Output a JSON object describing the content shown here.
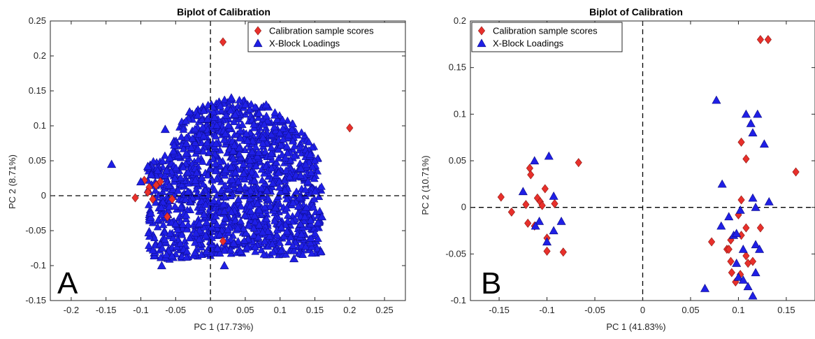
{
  "chart_data": [
    {
      "type": "scatter",
      "panel_label": "A",
      "title": "Biplot of Calibration",
      "xlabel": "PC 1 (17.73%)",
      "ylabel": "PC 2 (8.71%)",
      "xlim": [
        -0.23,
        0.28
      ],
      "ylim": [
        -0.15,
        0.25
      ],
      "xticks": [
        -0.2,
        -0.15,
        -0.1,
        -0.05,
        0,
        0.05,
        0.1,
        0.15,
        0.2,
        0.25
      ],
      "xtick_labels": [
        "-0.2",
        "-0.15",
        "-0.1",
        "-0.05",
        "0",
        "0.05",
        "0.1",
        "0.15",
        "0.2",
        "0.25"
      ],
      "yticks": [
        -0.15,
        -0.1,
        -0.05,
        0,
        0.05,
        0.1,
        0.15,
        0.2,
        0.25
      ],
      "ytick_labels": [
        "-0.15",
        "-0.1",
        "-0.05",
        "0",
        "0.05",
        "0.1",
        "0.15",
        "0.2",
        "0.25"
      ],
      "legend_position": "top-right",
      "series": [
        {
          "name": "Calibration sample scores",
          "marker": "diamond",
          "color": "#e8302b",
          "points": [
            [
              0.018,
              0.22
            ],
            [
              0.2,
              0.097
            ],
            [
              -0.108,
              -0.003
            ],
            [
              -0.095,
              0.022
            ],
            [
              -0.088,
              0.012
            ],
            [
              -0.083,
              -0.005
            ],
            [
              -0.078,
              0.015
            ],
            [
              -0.072,
              0.02
            ],
            [
              -0.062,
              -0.03
            ],
            [
              -0.055,
              -0.005
            ],
            [
              0.018,
              -0.065
            ],
            [
              -0.09,
              0.005
            ]
          ]
        },
        {
          "name": "X-Block Loadings",
          "marker": "triangle",
          "color": "#1f1fe6",
          "points": [
            [
              -0.142,
              0.045
            ],
            [
              -0.09,
              0.042
            ],
            [
              -0.1,
              0.02
            ],
            [
              -0.085,
              0.03
            ],
            [
              -0.065,
              0.095
            ],
            [
              -0.03,
              0.12
            ],
            [
              0.03,
              0.14
            ],
            [
              0.08,
              0.13
            ],
            [
              0.14,
              0.02
            ],
            [
              0.16,
              -0.03
            ],
            [
              -0.07,
              -0.1
            ],
            [
              0.02,
              -0.1
            ],
            [
              0.12,
              -0.09
            ]
          ]
        }
      ]
    },
    {
      "type": "scatter",
      "panel_label": "B",
      "title": "Biplot of Calibration",
      "xlabel": "PC 1 (41.83%)",
      "ylabel": "PC 2 (10.71%)",
      "xlim": [
        -0.18,
        0.18
      ],
      "ylim": [
        -0.1,
        0.2
      ],
      "xticks": [
        -0.15,
        -0.1,
        -0.05,
        0,
        0.05,
        0.1,
        0.15
      ],
      "xtick_labels": [
        "-0.15",
        "-0.1",
        "-0.05",
        "0",
        "0.05",
        "0.1",
        "0.15"
      ],
      "yticks": [
        -0.1,
        -0.05,
        0,
        0.05,
        0.1,
        0.15,
        0.2
      ],
      "ytick_labels": [
        "-0.1",
        "-0.05",
        "0",
        "0.05",
        "0.1",
        "0.15",
        "0.2"
      ],
      "legend_position": "top-left",
      "series": [
        {
          "name": "Calibration sample scores",
          "marker": "diamond",
          "color": "#e8302b",
          "points": [
            [
              -0.148,
              0.011
            ],
            [
              -0.137,
              -0.005
            ],
            [
              -0.118,
              0.042
            ],
            [
              -0.117,
              0.035
            ],
            [
              -0.122,
              0.003
            ],
            [
              -0.12,
              -0.017
            ],
            [
              -0.113,
              -0.02
            ],
            [
              -0.11,
              0.01
            ],
            [
              -0.107,
              0.006
            ],
            [
              -0.105,
              0.002
            ],
            [
              -0.102,
              0.02
            ],
            [
              -0.1,
              -0.033
            ],
            [
              -0.1,
              -0.047
            ],
            [
              -0.092,
              0.004
            ],
            [
              -0.083,
              -0.048
            ],
            [
              -0.067,
              0.048
            ],
            [
              0.16,
              0.038
            ],
            [
              0.123,
              0.18
            ],
            [
              0.131,
              0.18
            ],
            [
              0.103,
              0.07
            ],
            [
              0.108,
              0.052
            ],
            [
              0.103,
              0.008
            ],
            [
              0.1,
              -0.008
            ],
            [
              0.108,
              -0.022
            ],
            [
              0.103,
              -0.03
            ],
            [
              0.123,
              -0.022
            ],
            [
              0.072,
              -0.037
            ],
            [
              0.092,
              -0.035
            ],
            [
              0.088,
              -0.045
            ],
            [
              0.092,
              -0.058
            ],
            [
              0.093,
              -0.07
            ],
            [
              0.097,
              -0.08
            ],
            [
              0.108,
              -0.052
            ],
            [
              0.11,
              -0.06
            ],
            [
              0.115,
              -0.058
            ],
            [
              0.102,
              -0.072
            ],
            [
              0.09,
              -0.045
            ]
          ]
        },
        {
          "name": "X-Block Loadings",
          "marker": "triangle",
          "color": "#1f1fe6",
          "points": [
            [
              -0.113,
              0.05
            ],
            [
              -0.098,
              0.055
            ],
            [
              -0.125,
              0.017
            ],
            [
              -0.093,
              0.012
            ],
            [
              -0.108,
              -0.015
            ],
            [
              -0.112,
              -0.02
            ],
            [
              -0.093,
              -0.025
            ],
            [
              -0.085,
              -0.015
            ],
            [
              -0.1,
              -0.037
            ],
            [
              0.077,
              0.115
            ],
            [
              0.108,
              0.1
            ],
            [
              0.12,
              0.1
            ],
            [
              0.113,
              0.09
            ],
            [
              0.115,
              0.08
            ],
            [
              0.127,
              0.068
            ],
            [
              0.083,
              0.025
            ],
            [
              0.115,
              0.01
            ],
            [
              0.132,
              0.006
            ],
            [
              0.102,
              -0.003
            ],
            [
              0.118,
              0
            ],
            [
              0.082,
              -0.02
            ],
            [
              0.09,
              -0.01
            ],
            [
              0.095,
              -0.03
            ],
            [
              0.118,
              -0.04
            ],
            [
              0.122,
              -0.045
            ],
            [
              0.105,
              -0.045
            ],
            [
              0.098,
              -0.06
            ],
            [
              0.1,
              -0.075
            ],
            [
              0.118,
              -0.07
            ],
            [
              0.065,
              -0.087
            ],
            [
              0.105,
              -0.078
            ],
            [
              0.11,
              -0.085
            ],
            [
              0.115,
              -0.095
            ],
            [
              0.098,
              -0.028
            ]
          ]
        }
      ]
    }
  ]
}
